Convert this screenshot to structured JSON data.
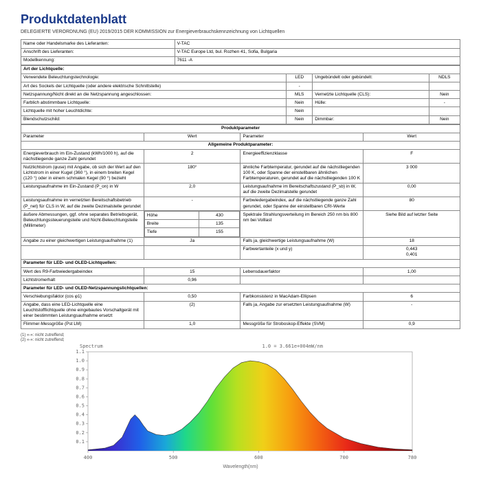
{
  "title": "Produktdatenblatt",
  "subtitle": "DELEGIERTE VERORDNUNG (EU) 2019/2015 DER KOMMISSION zur Energieverbrauchskennzeichnung von Lichtquellen",
  "hdr": {
    "supplier_label": "Name oder Handelsmarke des Lieferanten:",
    "supplier_val": "V-TAC",
    "address_label": "Anschrift des Lieferanten:",
    "address_val": "V-TAC Europe Ltd, bul. Rozhen 41, Sofia, Bulgaria",
    "model_label": "Modellkennung:",
    "model_val": "7611 -A"
  },
  "sec1_head": "Art der Lichtquelle:",
  "sec1": [
    [
      "Verwendete Beleuchtungstechnologie:",
      "LED",
      "Ungebündelt oder gebündelt:",
      "NDLS"
    ],
    [
      "Art des Sockels der Lichtquelle (oder andere elektrische Schnittstelle)",
      "-",
      "",
      ""
    ],
    [
      "Netzspannung/Nicht direkt an die Netzspannung angeschlossen:",
      "MLS",
      "Vernetzte Lichtquelle (CLS):",
      "Nein"
    ],
    [
      "Farblich abstimmbare Lichtquelle:",
      "Nein",
      "Hülle:",
      "-"
    ],
    [
      "Lichtquelle mit hoher Leuchtdichte:",
      "Nein",
      "",
      ""
    ],
    [
      "Blendschutzschild:",
      "Nein",
      "Dimmbar:",
      "Nein"
    ]
  ],
  "sec2_head": "Produktparameter",
  "sec2_cols": [
    "Parameter",
    "Wert",
    "Parameter",
    "Wert"
  ],
  "sec2_sub": "Allgemeine Produktparameter:",
  "sec2a": [
    [
      "Energieverbrauch im Ein-Zustand (kWh/1000 h), auf die nächstliegende ganze Zahl gerundet",
      "2",
      "Energieeffizienzklasse",
      "F"
    ],
    [
      "Nutzlichtstrom (φuse) mit Angabe, ob sich der Wert auf den Lichtstrom in einer Kugel (360 °), in einem breiten Kegel (120 °) oder in einem schmalen Kegel (90 °) bezieht",
      "180°",
      "ähnliche Farbtemperatur, gerundet auf die nächstliegenden 100 K, oder Spanne der einstellbaren ähnlichen Farbtemperaturen, gerundet auf die nächstliegenden 100 K",
      "3 000"
    ],
    [
      "Leistungsaufnahme im Ein-Zustand (P_on) in W",
      "2,0",
      "Leistungsaufnahme im Bereitschaftszustand (P_sb) in W, auf die zweite Dezimalstelle gerundet",
      "0,00"
    ],
    [
      "Leistungsaufnahme im vernetzten Bereitschaftsbetrieb (P_net) für CLS in W, auf die zweite Dezimalstelle gerundet",
      "-",
      "Farbwiedergabeindex, auf die nächstliegende ganze Zahl gerundet, oder Spanne der einstellbaren CRI-Werte",
      "80"
    ]
  ],
  "dims": {
    "label": "äußere Abmessungen, ggf. ohne separates Betriebsgerät, Beleuchtungssteuerungsteile und Nicht-Beleuchtungsteile (Millimeter)",
    "rows": [
      [
        "Höhe",
        "430"
      ],
      [
        "Breite",
        "135"
      ],
      [
        "Tiefe",
        "155"
      ]
    ],
    "right_label": "Spektrale Strahlungsverteilung im Bereich 250 nm bis 800 nm bei Volllast",
    "right_val": "Siehe Bild auf letzter Seite"
  },
  "sec2b": [
    [
      "Angabe zu einer gleichwertigen Leistungsaufnahme (1)",
      "Ja",
      "Falls ja, gleichwertige Leistungsaufnahme (W)",
      "18"
    ],
    [
      "",
      "",
      "Farbwertanteile (x und y)",
      "0,443\n0,401"
    ]
  ],
  "sec3_head": "Parameter für LED- und OLED-Lichtquellen:",
  "sec3": [
    [
      "Wert des R9-Farbwiedergabeindex",
      "15",
      "Lebensdauerfaktor",
      "1,00"
    ],
    [
      "Lichtstromerhalt",
      "0,96",
      "",
      ""
    ]
  ],
  "sec4_head": "Parameter für LED- und OLED-Netzspannungslichtquellen:",
  "sec4": [
    [
      "Verschiebungsfaktor (cos φ1)",
      "0,50",
      "Farbkonsistenz in MacAdam-Ellipsen",
      "6"
    ],
    [
      "Angabe, dass eine LED-Lichtquelle eine Leuchtstofflichtquelle ohne eingebautes Vorschaltgerät mit einer bestimmten Leistungsaufnahme ersetzt",
      "(2)",
      "Falls ja, Angabe zur ersetzten Leistungsaufnahme (W)",
      "-"
    ],
    [
      "Flimmer-Messgröße (Pst LM)",
      "1,0",
      "Messgröße für Stroboskop-Effekte (SVM)",
      "0,9"
    ]
  ],
  "footnotes": [
    "(1) «-»: nicht zutreffend;",
    "(2) «-»: nicht zutreffend;"
  ],
  "chart": {
    "title": "Spectrum",
    "caption": "1.0 = 3.661e+004mW/nm",
    "xlim": [
      400,
      780
    ],
    "ylim": [
      0,
      1.1
    ],
    "xticks": [
      400,
      500,
      600,
      700,
      780
    ],
    "yticks": [
      0.1,
      0.2,
      0.3,
      0.4,
      0.5,
      0.6,
      0.7,
      0.8,
      0.9,
      1.0,
      1.1
    ],
    "xlabel": "Wavelength(nm)",
    "curve_x": [
      400,
      410,
      420,
      430,
      440,
      450,
      455,
      460,
      465,
      470,
      480,
      490,
      500,
      510,
      520,
      530,
      540,
      550,
      560,
      570,
      580,
      590,
      600,
      610,
      620,
      630,
      640,
      650,
      660,
      670,
      680,
      700,
      720,
      740,
      760,
      780
    ],
    "curve_y": [
      0.01,
      0.02,
      0.03,
      0.06,
      0.15,
      0.35,
      0.4,
      0.35,
      0.28,
      0.22,
      0.18,
      0.17,
      0.19,
      0.24,
      0.32,
      0.42,
      0.55,
      0.7,
      0.82,
      0.92,
      0.98,
      1.0,
      0.99,
      0.96,
      0.9,
      0.8,
      0.68,
      0.55,
      0.43,
      0.33,
      0.25,
      0.14,
      0.08,
      0.04,
      0.02,
      0.01
    ],
    "stops": [
      {
        "o": 0.0,
        "c": "#2d1a8a"
      },
      {
        "o": 0.08,
        "c": "#3a2fd0"
      },
      {
        "o": 0.16,
        "c": "#2060e8"
      },
      {
        "o": 0.24,
        "c": "#1aa8d8"
      },
      {
        "o": 0.3,
        "c": "#1fd88a"
      },
      {
        "o": 0.38,
        "c": "#5fe038"
      },
      {
        "o": 0.46,
        "c": "#b8e020"
      },
      {
        "o": 0.54,
        "c": "#f0d018"
      },
      {
        "o": 0.62,
        "c": "#f7a010"
      },
      {
        "o": 0.7,
        "c": "#f46a10"
      },
      {
        "o": 0.8,
        "c": "#e82818"
      },
      {
        "o": 0.9,
        "c": "#b01010"
      },
      {
        "o": 1.0,
        "c": "#600808"
      }
    ]
  }
}
